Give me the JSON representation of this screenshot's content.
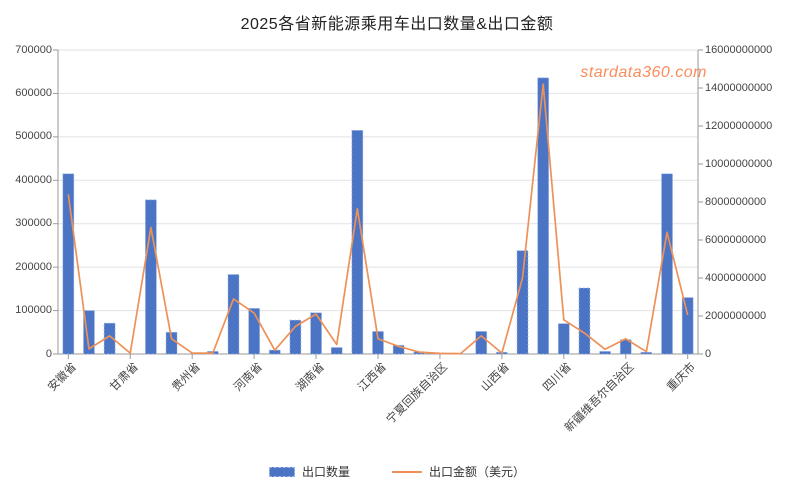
{
  "title": "2025各省新能源乘用车出口数量&出口金额",
  "watermark": "stardata360.com",
  "legend": {
    "bar_label": "出口数量",
    "line_label": "出口金额（美元）"
  },
  "colors": {
    "bar": "#4b74c4",
    "bar_edge": "#9db7e8",
    "line": "#ee9158",
    "grid": "#e2e2e2",
    "axis": "#9a9a9a",
    "tick_text": "#444444",
    "watermark": "#fa8c5c"
  },
  "chart_data": {
    "type": "bar+line dual-axis",
    "title": "2025各省新能源乘用车出口数量&出口金额",
    "categories": [
      "安徽省",
      "",
      "",
      "甘肃省",
      "",
      "",
      "贵州省",
      "",
      "",
      "河南省",
      "",
      "",
      "湖南省",
      "",
      "",
      "江西省",
      "",
      "",
      "宁夏回族自治区",
      "",
      "",
      "山西省",
      "",
      "",
      "四川省",
      "",
      "",
      "新疆维吾尔自治区",
      "",
      "",
      "重庆市"
    ],
    "note_visible_tick_labels": [
      "安徽省",
      "甘肃省",
      "贵州省",
      "河南省",
      "湖南省",
      "江西省",
      "宁夏回族自治区",
      "山西省",
      "四川省",
      "新疆维吾尔自治区",
      "重庆市"
    ],
    "series": [
      {
        "name": "出口数量",
        "type": "bar",
        "axis": "left",
        "values": [
          415000,
          100000,
          71000,
          0,
          355000,
          50000,
          0,
          6000,
          183000,
          105000,
          9000,
          78000,
          95000,
          15000,
          515000,
          52000,
          20000,
          5000,
          2000,
          0,
          52000,
          4000,
          238000,
          636000,
          70000,
          152000,
          6000,
          33000,
          4000,
          415000,
          130000
        ]
      },
      {
        "name": "出口金额（美元）",
        "type": "line",
        "axis": "right",
        "values": [
          8400000000,
          270000000,
          950000000,
          50000000,
          6650000000,
          800000000,
          50000000,
          50000000,
          2900000000,
          2150000000,
          200000000,
          1450000000,
          2100000000,
          500000000,
          7650000000,
          800000000,
          400000000,
          100000000,
          30000000,
          20000000,
          950000000,
          50000000,
          4000000000,
          14200000000,
          1800000000,
          1100000000,
          250000000,
          800000000,
          120000000,
          6400000000,
          2050000000
        ]
      }
    ],
    "left_axis": {
      "min": 0,
      "max": 700000,
      "interval": 100000,
      "tick_labels": [
        "0",
        "100000",
        "200000",
        "300000",
        "400000",
        "500000",
        "600000",
        "700000"
      ]
    },
    "right_axis": {
      "min": 0,
      "max": 16000000000,
      "interval": 2000000000,
      "tick_labels": [
        "0",
        "2000000000",
        "4000000000",
        "6000000000",
        "8000000000",
        "10000000000",
        "12000000000",
        "14000000000",
        "16000000000"
      ]
    },
    "grid": true,
    "legend_position": "bottom",
    "x_label_rotation": 45
  }
}
